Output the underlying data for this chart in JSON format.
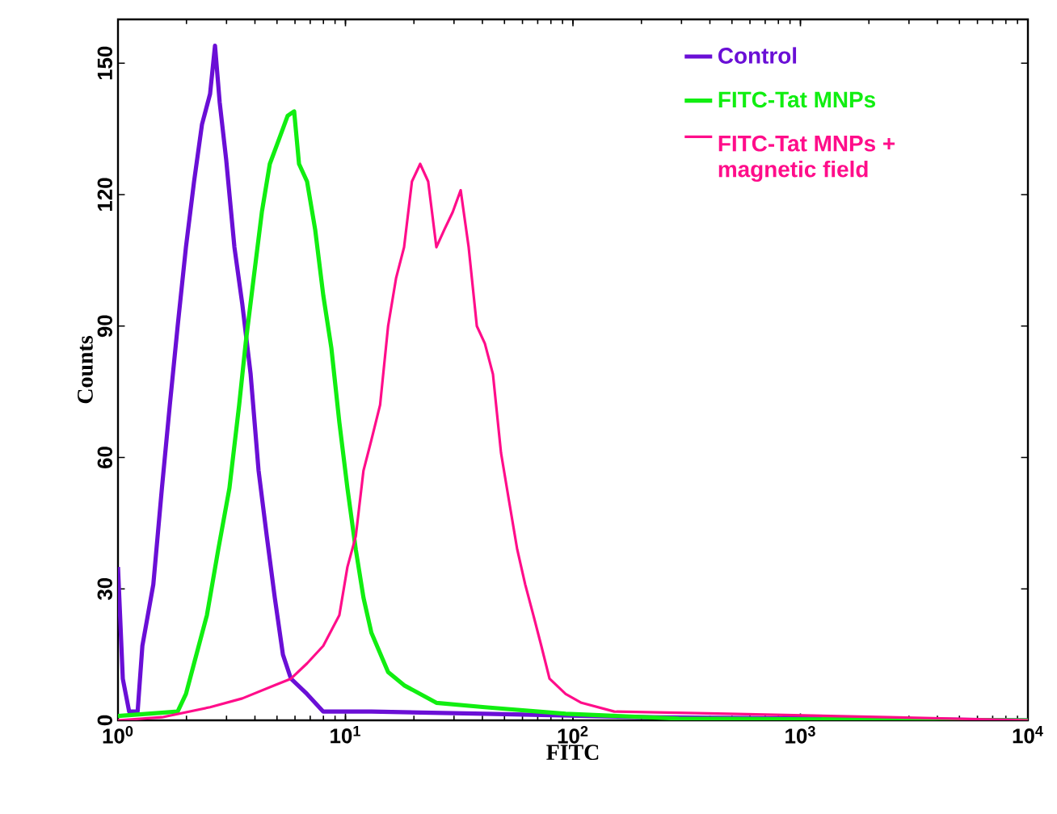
{
  "chart_data": {
    "type": "line",
    "xlabel": "FITC",
    "ylabel": "Counts",
    "log": "x",
    "xlim": [
      1,
      10000
    ],
    "ylim": [
      0,
      160
    ],
    "xticks": [
      {
        "value": 1,
        "label": "10$^{0}$"
      },
      {
        "value": 10,
        "label": "10$^{1}$"
      },
      {
        "value": 100,
        "label": "10$^{2}$"
      },
      {
        "value": 1000,
        "label": "10$^{3}$"
      },
      {
        "value": 10000,
        "label": "10$^{4}$"
      }
    ],
    "yticks": [
      0,
      30,
      60,
      90,
      120,
      150
    ],
    "grid": false,
    "legend": "top right",
    "marker": "none",
    "line_style": "solid",
    "series": [
      {
        "name": "Control",
        "color": "#6a0fd6",
        "x": [
          1,
          1.05,
          1.12,
          1.22,
          1.28,
          1.43,
          1.56,
          1.69,
          1.83,
          1.99,
          2.16,
          2.34,
          2.54,
          2.67,
          2.8,
          2.99,
          3.25,
          3.52,
          3.83,
          4.15,
          4.51,
          4.89,
          5.31,
          5.76,
          6.78,
          7.99,
          13,
          41,
          210,
          10000
        ],
        "values": [
          35,
          9.5,
          2,
          2,
          17,
          31,
          53,
          72,
          90,
          108,
          123,
          136,
          143,
          154,
          141,
          128,
          108,
          95,
          79,
          57,
          42,
          28,
          15,
          9.5,
          6,
          2,
          2,
          1.5,
          0.7,
          0
        ]
      },
      {
        "name": "FITC-Tat MNPs",
        "color": "#11ee11",
        "x": [
          1,
          1.83,
          1.99,
          2.16,
          2.46,
          2.76,
          3.09,
          3.41,
          3.64,
          3.95,
          4.29,
          4.65,
          5.05,
          5.57,
          5.95,
          6.25,
          6.78,
          7.36,
          7.99,
          8.67,
          9.4,
          10.2,
          11.1,
          12,
          13,
          15.4,
          18.1,
          25.1,
          41,
          92.9,
          292,
          10000
        ],
        "values": [
          1,
          2,
          6,
          13,
          24,
          39,
          53,
          72,
          86,
          101,
          116,
          127,
          132,
          138,
          139,
          127,
          123,
          112,
          97,
          85,
          68,
          53,
          39,
          28,
          20,
          11,
          8,
          4,
          3,
          1.5,
          0.4,
          0
        ]
      },
      {
        "name": "FITC-Tat MNPs + magnetic field",
        "color": "#ff0d8a",
        "x": [
          1,
          1.56,
          2.54,
          3.52,
          4.89,
          5.76,
          6.78,
          7.99,
          9.4,
          10.2,
          11.1,
          12,
          13,
          14.2,
          15.4,
          16.7,
          18.1,
          19.6,
          21.3,
          23.1,
          25.1,
          27.2,
          29.6,
          32.1,
          34.8,
          37.8,
          41,
          44.5,
          48.3,
          52.4,
          56.9,
          61.7,
          67,
          72.6,
          78.9,
          92.9,
          109,
          152,
          477,
          2450,
          10000
        ],
        "values": [
          0,
          0.7,
          3,
          5,
          8,
          9.5,
          13,
          17,
          24,
          35,
          42,
          57,
          64,
          72,
          90,
          101,
          108,
          123,
          127,
          123,
          108,
          112,
          116,
          121,
          108,
          90,
          86,
          79,
          61,
          50,
          39,
          31,
          24,
          17,
          9.5,
          6,
          4,
          2,
          1.5,
          0.7,
          0
        ]
      }
    ]
  }
}
